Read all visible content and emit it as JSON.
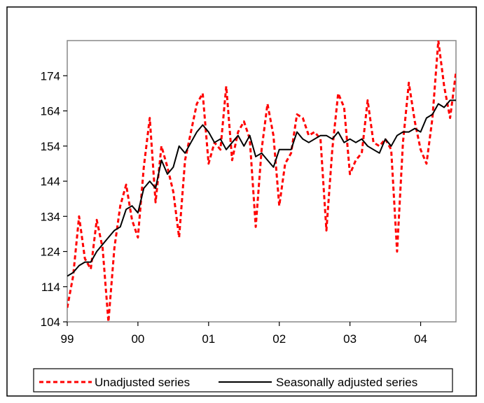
{
  "chart_data": {
    "type": "line",
    "title": "",
    "xlabel": "",
    "ylabel": "",
    "xlim": [
      1999.0,
      2004.5
    ],
    "ylim": [
      104,
      184
    ],
    "y_ticks": [
      104,
      114,
      124,
      134,
      144,
      154,
      164,
      174
    ],
    "x_ticks": [
      {
        "value": 1999.0,
        "label": "99"
      },
      {
        "value": 2000.0,
        "label": "00"
      },
      {
        "value": 2001.0,
        "label": "01"
      },
      {
        "value": 2002.0,
        "label": "02"
      },
      {
        "value": 2003.0,
        "label": "03"
      },
      {
        "value": 2004.0,
        "label": "04"
      }
    ],
    "grid": false,
    "legend_position": "bottom",
    "series": [
      {
        "name": "Unadjusted series",
        "color": "#ff0000",
        "style": "dashed",
        "x": [
          1999.0,
          1999.083,
          1999.167,
          1999.25,
          1999.333,
          1999.417,
          1999.5,
          1999.583,
          1999.667,
          1999.75,
          1999.833,
          1999.917,
          2000.0,
          2000.083,
          2000.167,
          2000.25,
          2000.333,
          2000.417,
          2000.5,
          2000.583,
          2000.667,
          2000.75,
          2000.833,
          2000.917,
          2001.0,
          2001.083,
          2001.167,
          2001.25,
          2001.333,
          2001.417,
          2001.5,
          2001.583,
          2001.667,
          2001.75,
          2001.833,
          2001.917,
          2002.0,
          2002.083,
          2002.167,
          2002.25,
          2002.333,
          2002.417,
          2002.5,
          2002.583,
          2002.667,
          2002.75,
          2002.833,
          2002.917,
          2003.0,
          2003.083,
          2003.167,
          2003.25,
          2003.333,
          2003.417,
          2003.5,
          2003.583,
          2003.667,
          2003.75,
          2003.833,
          2003.917,
          2004.0,
          2004.083,
          2004.167,
          2004.25,
          2004.333,
          2004.417,
          2004.5
        ],
        "values": [
          108,
          117,
          134,
          122,
          119,
          133,
          125,
          104,
          125,
          137,
          143,
          133,
          128,
          148,
          162,
          138,
          154,
          148,
          141,
          128,
          150,
          158,
          166,
          169,
          149,
          155,
          153,
          171,
          150,
          158,
          161,
          156,
          131,
          153,
          166,
          157,
          137,
          149,
          152,
          163,
          162,
          157,
          158,
          156,
          130,
          153,
          169,
          165,
          146,
          150,
          152,
          167,
          155,
          154,
          156,
          153,
          124,
          155,
          172,
          161,
          153,
          149,
          162,
          184,
          171,
          162,
          175
        ],
        "note": ""
      },
      {
        "name": "Seasonally adjusted series",
        "color": "#000000",
        "style": "solid",
        "x": [
          1999.0,
          1999.083,
          1999.167,
          1999.25,
          1999.333,
          1999.417,
          1999.5,
          1999.583,
          1999.667,
          1999.75,
          1999.833,
          1999.917,
          2000.0,
          2000.083,
          2000.167,
          2000.25,
          2000.333,
          2000.417,
          2000.5,
          2000.583,
          2000.667,
          2000.75,
          2000.833,
          2000.917,
          2001.0,
          2001.083,
          2001.167,
          2001.25,
          2001.333,
          2001.417,
          2001.5,
          2001.583,
          2001.667,
          2001.75,
          2001.833,
          2001.917,
          2002.0,
          2002.083,
          2002.167,
          2002.25,
          2002.333,
          2002.417,
          2002.5,
          2002.583,
          2002.667,
          2002.75,
          2002.833,
          2002.917,
          2003.0,
          2003.083,
          2003.167,
          2003.25,
          2003.333,
          2003.417,
          2003.5,
          2003.583,
          2003.667,
          2003.75,
          2003.833,
          2003.917,
          2004.0,
          2004.083,
          2004.167,
          2004.25,
          2004.333,
          2004.417,
          2004.5
        ],
        "values": [
          117,
          118,
          120,
          121,
          121,
          124,
          126,
          128,
          130,
          131,
          136,
          137,
          135,
          142,
          144,
          142,
          150,
          146,
          148,
          154,
          152,
          155,
          158,
          160,
          158,
          155,
          156,
          153,
          155,
          157,
          154,
          157,
          151,
          152,
          150,
          148,
          153,
          153,
          153,
          158,
          156,
          155,
          156,
          157,
          157,
          156,
          158,
          155,
          156,
          155,
          156,
          154,
          153,
          152,
          156,
          154,
          157,
          158,
          158,
          159,
          158,
          162,
          163,
          166,
          165,
          167,
          167
        ]
      }
    ]
  }
}
